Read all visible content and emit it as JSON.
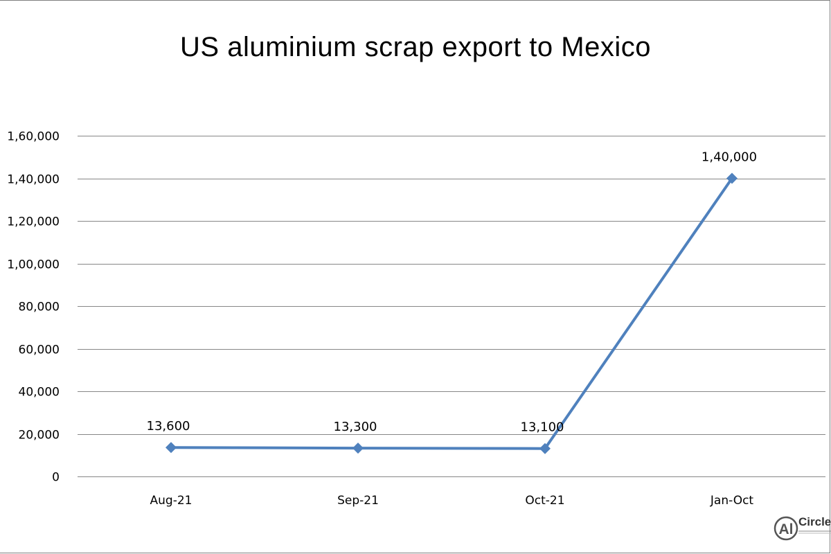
{
  "chart_data": {
    "type": "line",
    "title": "US aluminium scrap export to Mexico",
    "categories": [
      "Aug-21",
      "Sep-21",
      "Oct-21",
      "Jan-Oct"
    ],
    "series": [
      {
        "values": [
          13600,
          13300,
          13100,
          140000
        ],
        "data_labels": [
          "13,600",
          "13,300",
          "13,100",
          "1,40,000"
        ],
        "color": "#4f81bd",
        "marker": "diamond"
      }
    ],
    "y_ticks": [
      0,
      20000,
      40000,
      60000,
      80000,
      100000,
      120000,
      140000,
      160000
    ],
    "y_tick_labels": [
      "0",
      "20,000",
      "40,000",
      "60,000",
      "80,000",
      "1,00,000",
      "1,20,000",
      "1,40,000",
      "1,60,000"
    ],
    "ylim": [
      0,
      160000
    ],
    "grid": true,
    "legend": "none",
    "xlabel": "",
    "ylabel": ""
  },
  "logo": {
    "initials": "Al",
    "text": "Circle"
  },
  "colors": {
    "line": "#4f81bd",
    "grid": "#868686",
    "text": "#000000"
  }
}
